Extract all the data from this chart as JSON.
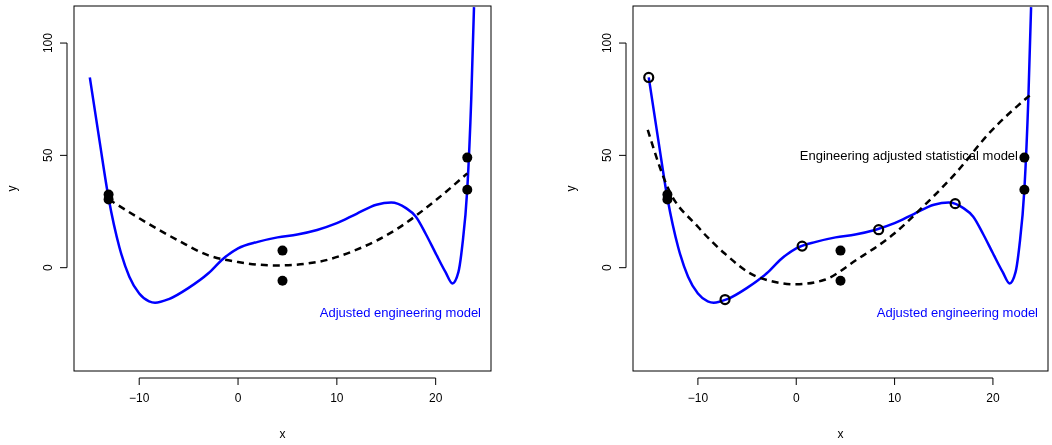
{
  "chart_data": [
    {
      "type": "line",
      "xlabel": "x",
      "ylabel": "y",
      "xlim": [
        -16.6,
        25.6
      ],
      "ylim": [
        -46,
        116.5
      ],
      "xticks": [
        -10,
        0,
        10,
        20
      ],
      "yticks": [
        0,
        50,
        100
      ],
      "grid": false,
      "legend": false,
      "series": [
        {
          "name": "Adjusted engineering model",
          "color": "#0000ff",
          "line_style": "solid",
          "x": [
            -15,
            -14,
            -13.1,
            -12,
            -11,
            -10,
            -9,
            -8.4,
            -7,
            -5,
            -3,
            -1.5,
            0,
            2,
            4,
            6,
            8,
            10,
            12,
            14,
            15.5,
            17,
            18,
            19,
            20,
            21,
            21.7,
            22.3,
            22.7,
            23.2,
            23.6,
            23.88
          ],
          "values": [
            84.7,
            56,
            31,
            9,
            -4,
            -11.5,
            -15,
            -15.6,
            -14,
            -9,
            -2.5,
            4,
            8.6,
            11.5,
            13.5,
            14.8,
            16.8,
            19.8,
            24,
            28,
            29,
            26.5,
            22.7,
            15,
            6.4,
            -2,
            -7,
            -2,
            10,
            35,
            75,
            116
          ]
        },
        {
          "color": "#000000",
          "line_style": "dashed",
          "x": [
            -13.1,
            -10,
            -6,
            -3,
            0,
            4,
            8,
            12,
            16,
            20,
            23.2
          ],
          "values": [
            30.5,
            22,
            12,
            5.5,
            2.5,
            1,
            2.5,
            8,
            17,
            30,
            42
          ]
        },
        {
          "type": "scatter",
          "color": "#000000",
          "marker": "circle",
          "x": [
            -13.1,
            -13.1,
            4.5,
            4.5,
            23.2,
            23.2
          ],
          "values": [
            32.6,
            30.4,
            7.6,
            -5.8,
            49,
            34.7
          ]
        }
      ]
    },
    {
      "type": "line",
      "xlabel": "x",
      "ylabel": "y",
      "xlim": [
        -16.6,
        25.6
      ],
      "ylim": [
        -46,
        116.5
      ],
      "xticks": [
        -10,
        0,
        10,
        20
      ],
      "yticks": [
        0,
        50,
        100
      ],
      "grid": false,
      "legend": false,
      "series": [
        {
          "name": "Adjusted engineering model",
          "color": "#0000ff",
          "line_style": "solid",
          "x": [
            -15,
            -14,
            -13.1,
            -12,
            -11,
            -10,
            -9,
            -8.4,
            -7,
            -5,
            -3,
            -1.5,
            0,
            2,
            4,
            6,
            8,
            10,
            12,
            14,
            15.5,
            17,
            18,
            19,
            20,
            21,
            21.7,
            22.3,
            22.7,
            23.2,
            23.6,
            23.88
          ],
          "values": [
            84.7,
            56,
            31,
            9,
            -4,
            -11.5,
            -15,
            -15.6,
            -14,
            -9,
            -2.5,
            4,
            8.6,
            11.5,
            13.5,
            14.8,
            16.8,
            19.8,
            24,
            28,
            29,
            26.5,
            22.7,
            15,
            6.4,
            -2,
            -7,
            -2,
            10,
            35,
            75,
            116
          ]
        },
        {
          "name": "Engineering adjusted statistical model",
          "color": "#000000",
          "line_style": "dashed",
          "x": [
            -15.1,
            -13.1,
            -10,
            -7.3,
            -4,
            0,
            2.8,
            6.1,
            10,
            12.9,
            16.2,
            19.6,
            23.8
          ],
          "values": [
            61.3,
            36,
            18.2,
            6.4,
            -4,
            -7.4,
            -5.5,
            3.4,
            15.3,
            27.2,
            42,
            59.8,
            76.9
          ]
        },
        {
          "type": "scatter",
          "color": "#000000",
          "marker": "circle",
          "x": [
            -13.1,
            -13.1,
            4.5,
            4.5,
            23.2,
            23.2
          ],
          "values": [
            32.6,
            30.4,
            7.6,
            -5.8,
            49,
            34.7
          ]
        },
        {
          "type": "scatter",
          "color": "#000000",
          "x": [
            -15,
            -7.24,
            0.6,
            8.38,
            16.16
          ],
          "values": [
            84.7,
            -14.2,
            9.6,
            16.9,
            28.5
          ]
        }
      ]
    }
  ]
}
